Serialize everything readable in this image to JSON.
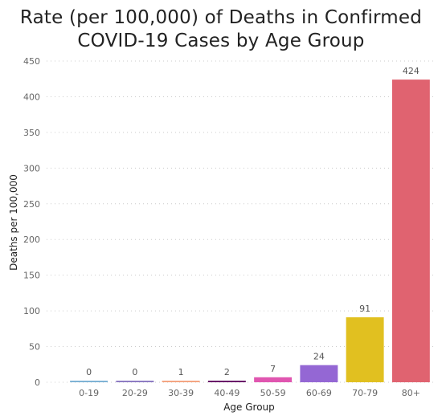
{
  "chart_data": {
    "type": "bar",
    "title_lines": [
      "Rate (per 100,000) of Deaths in Confirmed",
      "COVID-19 Cases by Age Group"
    ],
    "xlabel": "Age Group",
    "ylabel": "Deaths per 100,000",
    "categories": [
      "0-19",
      "20-29",
      "30-39",
      "40-49",
      "50-59",
      "60-69",
      "70-79",
      "80+"
    ],
    "values": [
      0,
      0,
      1,
      2,
      7,
      24,
      91,
      424
    ],
    "data_labels": [
      "0",
      "0",
      "1",
      "2",
      "7",
      "24",
      "91",
      "424"
    ],
    "colors": [
      "#7fb3d5",
      "#8e7cc3",
      "#f4a582",
      "#6a1b6a",
      "#e056b0",
      "#9467d4",
      "#e1c020",
      "#e06370"
    ],
    "ylim": [
      0,
      450
    ],
    "yticks": [
      0,
      50,
      100,
      150,
      200,
      250,
      300,
      350,
      400,
      450
    ],
    "grid": true,
    "grid_style": "dotted",
    "legend": "none"
  }
}
